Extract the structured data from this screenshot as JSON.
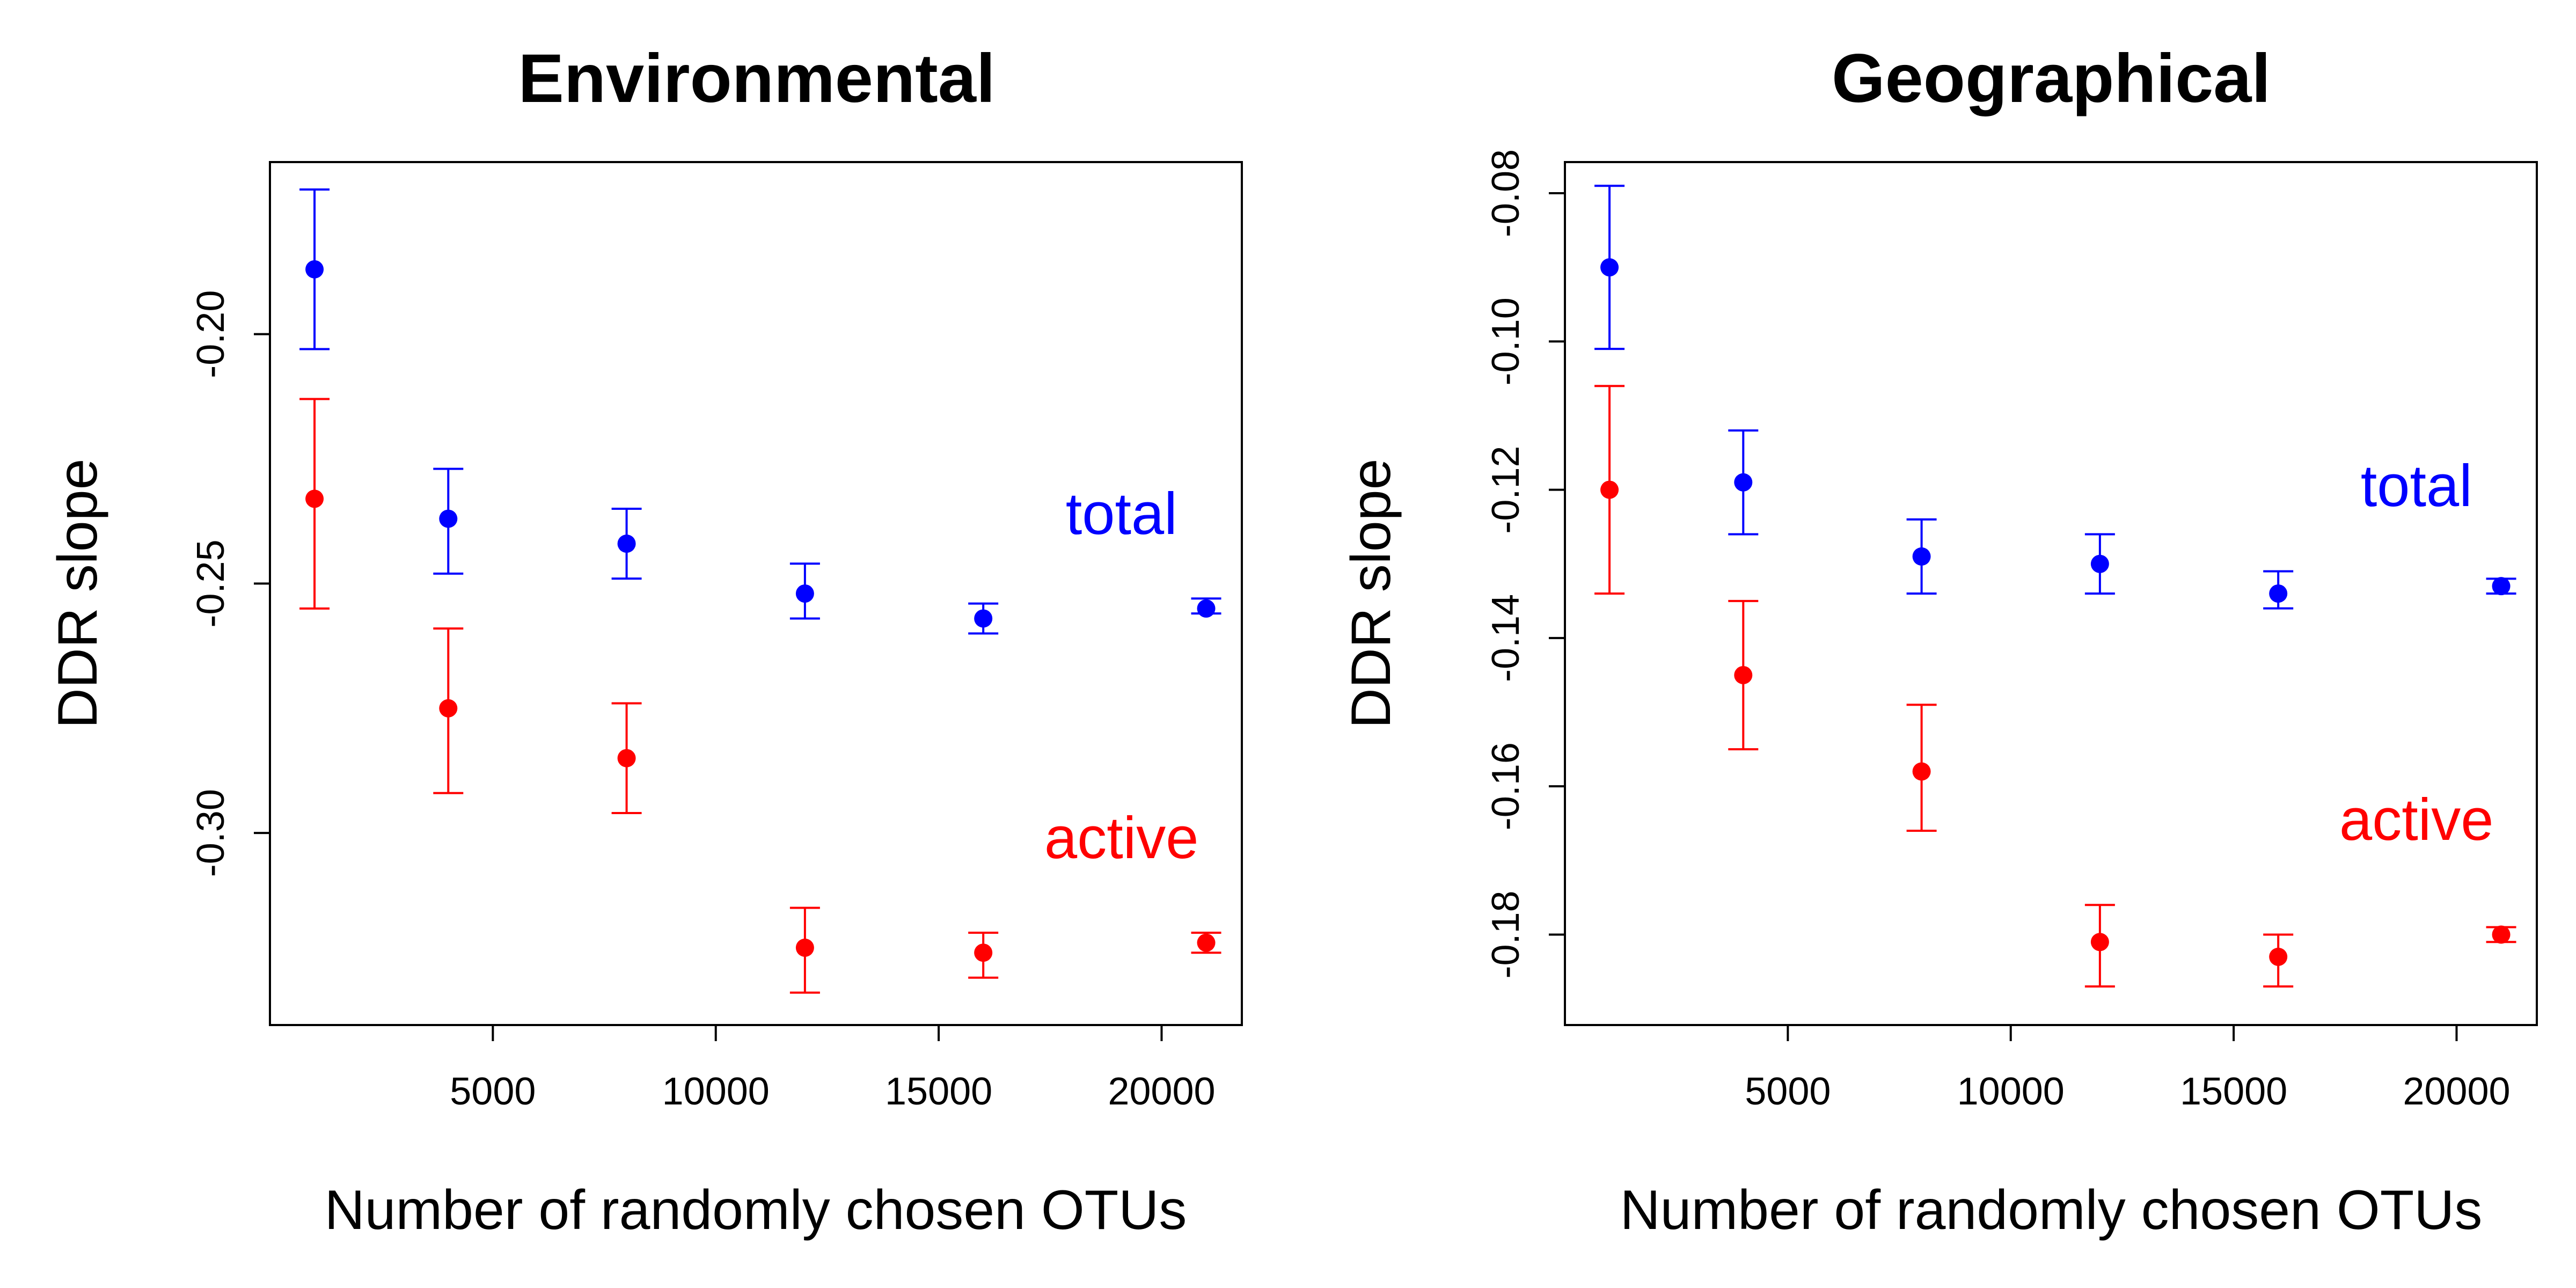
{
  "colors": {
    "total": "#0000ff",
    "active": "#ff0000",
    "axis": "#000000"
  },
  "chart_data": [
    {
      "type": "scatter",
      "title": "Environmental",
      "xlabel": "Number of randomly chosen OTUs",
      "ylabel": "DDR slope",
      "xlim": [
        0,
        21800
      ],
      "ylim": [
        -0.3385,
        -0.1655
      ],
      "x_ticks": [
        5000,
        10000,
        15000,
        20000
      ],
      "x_tick_labels": [
        "5000",
        "10000",
        "15000",
        "20000"
      ],
      "y_ticks": [
        -0.2,
        -0.25,
        -0.3
      ],
      "y_tick_labels": [
        "-0.20",
        "-0.25",
        "-0.30"
      ],
      "series": [
        {
          "name": "total",
          "color": "#0000ff",
          "label_pos": [
            19100,
            -0.236
          ],
          "points": [
            {
              "x": 1000,
              "y": -0.187,
              "lo": -0.203,
              "hi": -0.171
            },
            {
              "x": 4000,
              "y": -0.237,
              "lo": -0.248,
              "hi": -0.227
            },
            {
              "x": 8000,
              "y": -0.242,
              "lo": -0.249,
              "hi": -0.235
            },
            {
              "x": 12000,
              "y": -0.252,
              "lo": -0.257,
              "hi": -0.246
            },
            {
              "x": 16000,
              "y": -0.257,
              "lo": -0.26,
              "hi": -0.254
            },
            {
              "x": 21000,
              "y": -0.255,
              "lo": -0.256,
              "hi": -0.253
            }
          ]
        },
        {
          "name": "active",
          "color": "#ff0000",
          "label_pos": [
            19100,
            -0.301
          ],
          "points": [
            {
              "x": 1000,
              "y": -0.233,
              "lo": -0.255,
              "hi": -0.213
            },
            {
              "x": 4000,
              "y": -0.275,
              "lo": -0.292,
              "hi": -0.259
            },
            {
              "x": 8000,
              "y": -0.285,
              "lo": -0.296,
              "hi": -0.274
            },
            {
              "x": 12000,
              "y": -0.323,
              "lo": -0.332,
              "hi": -0.315
            },
            {
              "x": 16000,
              "y": -0.324,
              "lo": -0.329,
              "hi": -0.32
            },
            {
              "x": 21000,
              "y": -0.322,
              "lo": -0.324,
              "hi": -0.32
            }
          ]
        }
      ]
    },
    {
      "type": "scatter",
      "title": "Geographical",
      "xlabel": "Number of randomly chosen OTUs",
      "ylabel": "DDR slope",
      "xlim": [
        0,
        21800
      ],
      "ylim": [
        -0.1922,
        -0.0758
      ],
      "x_ticks": [
        5000,
        10000,
        15000,
        20000
      ],
      "x_tick_labels": [
        "5000",
        "10000",
        "15000",
        "20000"
      ],
      "y_ticks": [
        -0.08,
        -0.1,
        -0.12,
        -0.14,
        -0.16,
        -0.18
      ],
      "y_tick_labels": [
        "-0.08",
        "-0.10",
        "-0.12",
        "-0.14",
        "-0.16",
        "-0.18"
      ],
      "series": [
        {
          "name": "total",
          "color": "#0000ff",
          "label_pos": [
            19100,
            -0.1195
          ],
          "points": [
            {
              "x": 1000,
              "y": -0.09,
              "lo": -0.101,
              "hi": -0.079
            },
            {
              "x": 4000,
              "y": -0.119,
              "lo": -0.126,
              "hi": -0.112
            },
            {
              "x": 8000,
              "y": -0.129,
              "lo": -0.134,
              "hi": -0.124
            },
            {
              "x": 12000,
              "y": -0.13,
              "lo": -0.134,
              "hi": -0.126
            },
            {
              "x": 16000,
              "y": -0.134,
              "lo": -0.136,
              "hi": -0.131
            },
            {
              "x": 21000,
              "y": -0.133,
              "lo": -0.134,
              "hi": -0.132
            }
          ]
        },
        {
          "name": "active",
          "color": "#ff0000",
          "label_pos": [
            19100,
            -0.1645
          ],
          "points": [
            {
              "x": 1000,
              "y": -0.12,
              "lo": -0.134,
              "hi": -0.106
            },
            {
              "x": 4000,
              "y": -0.145,
              "lo": -0.155,
              "hi": -0.135
            },
            {
              "x": 8000,
              "y": -0.158,
              "lo": -0.166,
              "hi": -0.149
            },
            {
              "x": 12000,
              "y": -0.181,
              "lo": -0.187,
              "hi": -0.176
            },
            {
              "x": 16000,
              "y": -0.183,
              "lo": -0.187,
              "hi": -0.18
            },
            {
              "x": 21000,
              "y": -0.18,
              "lo": -0.181,
              "hi": -0.179
            }
          ]
        }
      ]
    }
  ]
}
